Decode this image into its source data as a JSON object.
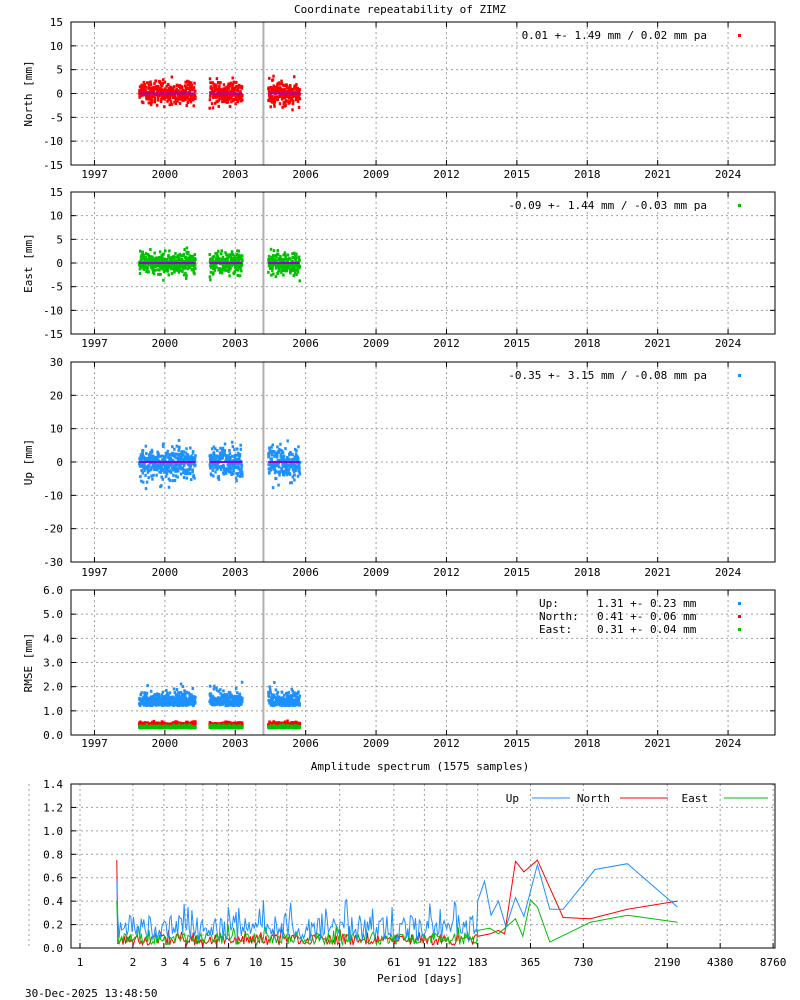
{
  "title": "Coordinate repeatability of ZIMZ",
  "timestamp": "30-Dec-2025 13:48:50",
  "chart_data": [
    {
      "type": "scatter",
      "name": "north",
      "ylabel": "North [mm]",
      "xlim": [
        1996,
        2026
      ],
      "xticks": [
        1997,
        2000,
        2003,
        2006,
        2009,
        2012,
        2015,
        2018,
        2021,
        2024
      ],
      "ylim": [
        -15,
        15
      ],
      "yticks": [
        -15,
        -10,
        -5,
        0,
        5,
        10,
        15
      ],
      "ytick_labels": [
        "-15",
        "-10",
        "-5",
        "0",
        "5",
        "10",
        "15"
      ],
      "legend": "0.01 +- 1.49 mm /  0.02 mm pa",
      "color": "#ff0000",
      "trend_color": "#9400d3",
      "mean": 0.01,
      "std": 1.49,
      "rate_mm_pa": 0.02,
      "segments": [
        [
          1998.9,
          2001.3
        ],
        [
          2001.9,
          2003.3
        ],
        [
          2004.4,
          2005.75
        ]
      ],
      "change_epoch": 2004.2,
      "grid": true,
      "legend_position": "top-right"
    },
    {
      "type": "scatter",
      "name": "east",
      "ylabel": "East [mm]",
      "xlim": [
        1996,
        2026
      ],
      "xticks": [
        1997,
        2000,
        2003,
        2006,
        2009,
        2012,
        2015,
        2018,
        2021,
        2024
      ],
      "ylim": [
        -15,
        15
      ],
      "yticks": [
        -15,
        -10,
        -5,
        0,
        5,
        10,
        15
      ],
      "ytick_labels": [
        "-15",
        "-10",
        "-5",
        "0",
        "5",
        "10",
        "15"
      ],
      "legend": "-0.09 +- 1.44 mm / -0.03 mm pa",
      "color": "#00c000",
      "trend_color": "#9400d3",
      "mean": -0.09,
      "std": 1.44,
      "rate_mm_pa": -0.03,
      "segments": [
        [
          1998.9,
          2001.3
        ],
        [
          2001.9,
          2003.3
        ],
        [
          2004.4,
          2005.75
        ]
      ],
      "change_epoch": 2004.2,
      "grid": true,
      "legend_position": "top-right"
    },
    {
      "type": "scatter",
      "name": "up",
      "ylabel": "Up [mm]",
      "xlim": [
        1996,
        2026
      ],
      "xticks": [
        1997,
        2000,
        2003,
        2006,
        2009,
        2012,
        2015,
        2018,
        2021,
        2024
      ],
      "ylim": [
        -30,
        30
      ],
      "yticks": [
        -30,
        -20,
        -10,
        0,
        10,
        20,
        30
      ],
      "ytick_labels": [
        "-30",
        "-20",
        "-10",
        "0",
        "10",
        "20",
        "30"
      ],
      "legend": "-0.35 +- 3.15 mm / -0.08 mm pa",
      "color": "#1e90ff",
      "trend_color": "#9400d3",
      "mean": -0.35,
      "std": 3.15,
      "rate_mm_pa": -0.08,
      "segments": [
        [
          1998.9,
          2001.3
        ],
        [
          2001.9,
          2003.3
        ],
        [
          2004.4,
          2005.75
        ]
      ],
      "change_epoch": 2004.2,
      "grid": true,
      "legend_position": "top-right"
    },
    {
      "type": "scatter",
      "name": "rmse",
      "ylabel": "RMSE [mm]",
      "xlim": [
        1996,
        2026
      ],
      "xticks": [
        1997,
        2000,
        2003,
        2006,
        2009,
        2012,
        2015,
        2018,
        2021,
        2024
      ],
      "ylim": [
        0,
        6
      ],
      "yticks": [
        0,
        1,
        2,
        3,
        4,
        5,
        6
      ],
      "ytick_labels": [
        "0.0",
        "1.0",
        "2.0",
        "3.0",
        "4.0",
        "5.0",
        "6.0"
      ],
      "segments": [
        [
          1998.9,
          2001.3
        ],
        [
          2001.9,
          2003.3
        ],
        [
          2004.4,
          2005.75
        ]
      ],
      "change_epoch": 2004.2,
      "grid": true,
      "legend_position": "top-right",
      "series": [
        {
          "name": "Up:",
          "value": "1.31 +- 0.23 mm",
          "mean": 1.31,
          "std": 0.23,
          "color": "#1e90ff"
        },
        {
          "name": "North:",
          "value": "0.41 +- 0.06 mm",
          "mean": 0.41,
          "std": 0.06,
          "color": "#ff0000"
        },
        {
          "name": "East:",
          "value": "0.31 +- 0.04 mm",
          "mean": 0.31,
          "std": 0.04,
          "color": "#00c000"
        }
      ]
    },
    {
      "type": "line",
      "name": "spectrum",
      "title": "Amplitude spectrum (1575 samples)",
      "xlabel": "Period [days]",
      "xscale": "log",
      "xlim": [
        0.9,
        9000
      ],
      "xticks": [
        1,
        2,
        3,
        4,
        5,
        6,
        7,
        10,
        15,
        30,
        61,
        91,
        122,
        183,
        365,
        730,
        2190,
        4380,
        8760
      ],
      "xtick_labels": [
        "1",
        "2",
        "3",
        "4",
        "5",
        "6",
        "7",
        "10",
        "15",
        "30",
        "61",
        "91",
        "122",
        "183",
        "365",
        "730",
        "2190",
        "4380",
        "8760"
      ],
      "ylim": [
        0,
        1.4
      ],
      "yticks": [
        0,
        0.2,
        0.4,
        0.6,
        0.8,
        1.0,
        1.2,
        1.4
      ],
      "ytick_labels": [
        "0.0",
        "0.2",
        "0.4",
        "0.6",
        "0.8",
        "1.0",
        "1.2",
        "1.4"
      ],
      "grid": true,
      "legend_position": "top-right",
      "series": [
        {
          "name": "Up",
          "color": "#1e90ff",
          "noise_level": 0.17,
          "first_peak": 0.57,
          "long_period_points": [
            [
              183,
              0.4
            ],
            [
              200,
              0.57
            ],
            [
              218,
              0.28
            ],
            [
              240,
              0.4
            ],
            [
              265,
              0.18
            ],
            [
              300,
              0.43
            ],
            [
              335,
              0.27
            ],
            [
              400,
              0.71
            ],
            [
              470,
              0.33
            ],
            [
              560,
              0.33
            ],
            [
              850,
              0.67
            ],
            [
              1300,
              0.72
            ],
            [
              2500,
              0.35
            ]
          ]
        },
        {
          "name": "North",
          "color": "#ff0000",
          "noise_level": 0.07,
          "first_peak": 0.75,
          "long_period_points": [
            [
              183,
              0.1
            ],
            [
              215,
              0.12
            ],
            [
              240,
              0.15
            ],
            [
              260,
              0.12
            ],
            [
              300,
              0.74
            ],
            [
              335,
              0.65
            ],
            [
              400,
              0.75
            ],
            [
              560,
              0.26
            ],
            [
              800,
              0.25
            ],
            [
              1300,
              0.33
            ],
            [
              2500,
              0.4
            ]
          ]
        },
        {
          "name": "East",
          "color": "#00c000",
          "noise_level": 0.08,
          "first_peak": 0.4,
          "long_period_points": [
            [
              183,
              0.15
            ],
            [
              215,
              0.17
            ],
            [
              240,
              0.12
            ],
            [
              300,
              0.25
            ],
            [
              330,
              0.1
            ],
            [
              365,
              0.41
            ],
            [
              400,
              0.35
            ],
            [
              470,
              0.05
            ],
            [
              800,
              0.22
            ],
            [
              1300,
              0.28
            ],
            [
              2500,
              0.22
            ]
          ]
        }
      ]
    }
  ]
}
